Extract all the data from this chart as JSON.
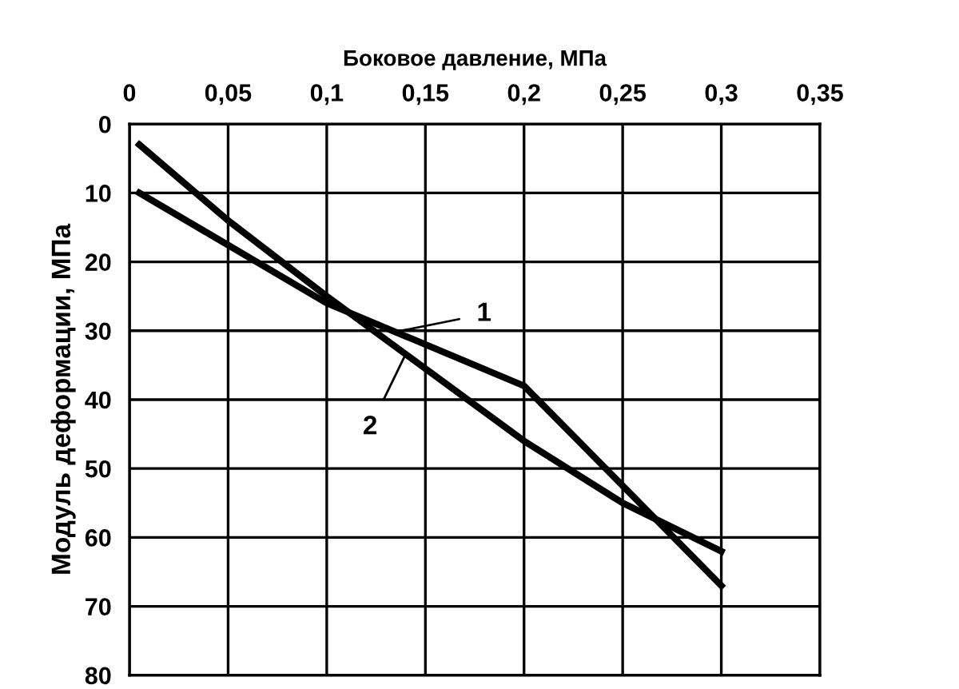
{
  "chart_data": {
    "type": "line",
    "xlabel": "Боковое давление, МПа",
    "ylabel": "Модуль деформации, МПа",
    "xlim": [
      0,
      0.35
    ],
    "ylim": [
      80,
      0
    ],
    "xticks": [
      {
        "value": 0,
        "label": "0"
      },
      {
        "value": 0.05,
        "label": "0,05"
      },
      {
        "value": 0.1,
        "label": "0,1"
      },
      {
        "value": 0.15,
        "label": "0,15"
      },
      {
        "value": 0.2,
        "label": "0,2"
      },
      {
        "value": 0.25,
        "label": "0,25"
      },
      {
        "value": 0.3,
        "label": "0,3"
      },
      {
        "value": 0.35,
        "label": "0,35"
      }
    ],
    "yticks": [
      0,
      10,
      20,
      30,
      40,
      50,
      60,
      70,
      80
    ],
    "grid": true,
    "marker": "none",
    "line_style": "solid",
    "series": [
      {
        "name": "1",
        "color": "#000000",
        "x": [
          0.005,
          0.1,
          0.2,
          0.3
        ],
        "values": [
          10,
          26,
          38,
          67
        ]
      },
      {
        "name": "2",
        "color": "#000000",
        "x": [
          0.005,
          0.05,
          0.1,
          0.2,
          0.25,
          0.3
        ],
        "values": [
          3,
          14,
          25,
          46,
          55,
          62
        ]
      }
    ]
  }
}
